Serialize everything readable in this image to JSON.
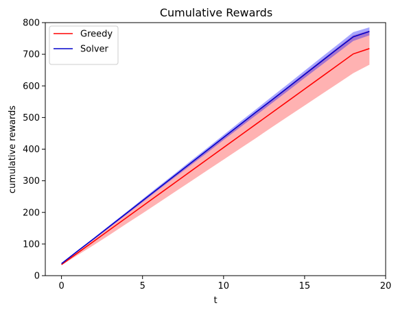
{
  "chart_data": {
    "type": "line",
    "title": "Cumulative Rewards",
    "xlabel": "t",
    "ylabel": "cumulative rewards",
    "xlim": [
      -1,
      20
    ],
    "ylim": [
      0,
      800
    ],
    "x_ticks": [
      0,
      5,
      10,
      15,
      20
    ],
    "y_ticks": [
      0,
      100,
      200,
      300,
      400,
      500,
      600,
      700,
      800
    ],
    "grid": false,
    "legend_position": "upper-left",
    "x": [
      0,
      1,
      2,
      3,
      4,
      5,
      6,
      7,
      8,
      9,
      10,
      11,
      12,
      13,
      14,
      15,
      16,
      17,
      18,
      19
    ],
    "series": [
      {
        "name": "Greedy",
        "color": "#ff0000",
        "band_color": "#ff0000",
        "values": [
          35,
          72,
          109,
          146,
          183,
          220,
          257,
          294,
          331,
          368,
          405,
          442,
          479,
          516,
          553,
          590,
          627,
          664,
          701,
          718
        ],
        "lower": [
          33,
          65,
          97,
          130,
          164,
          197,
          231,
          265,
          299,
          333,
          367,
          401,
          435,
          470,
          504,
          538,
          572,
          606,
          640,
          667
        ],
        "upper": [
          37,
          77,
          117,
          157,
          197,
          237,
          277,
          318,
          358,
          398,
          438,
          478,
          519,
          559,
          599,
          640,
          680,
          720,
          760,
          775
        ]
      },
      {
        "name": "Solver",
        "color": "#0000cc",
        "band_color": "#0000ff",
        "values": [
          38,
          78,
          117,
          157,
          197,
          237,
          277,
          317,
          357,
          397,
          437,
          477,
          517,
          556,
          596,
          636,
          676,
          716,
          755,
          772
        ],
        "lower": [
          37,
          76,
          115,
          154,
          193,
          232,
          272,
          311,
          350,
          389,
          429,
          468,
          507,
          546,
          585,
          625,
          664,
          703,
          742,
          760
        ],
        "upper": [
          39,
          80,
          120,
          161,
          201,
          242,
          283,
          323,
          364,
          404,
          445,
          486,
          526,
          567,
          607,
          648,
          689,
          729,
          770,
          785
        ]
      }
    ]
  }
}
